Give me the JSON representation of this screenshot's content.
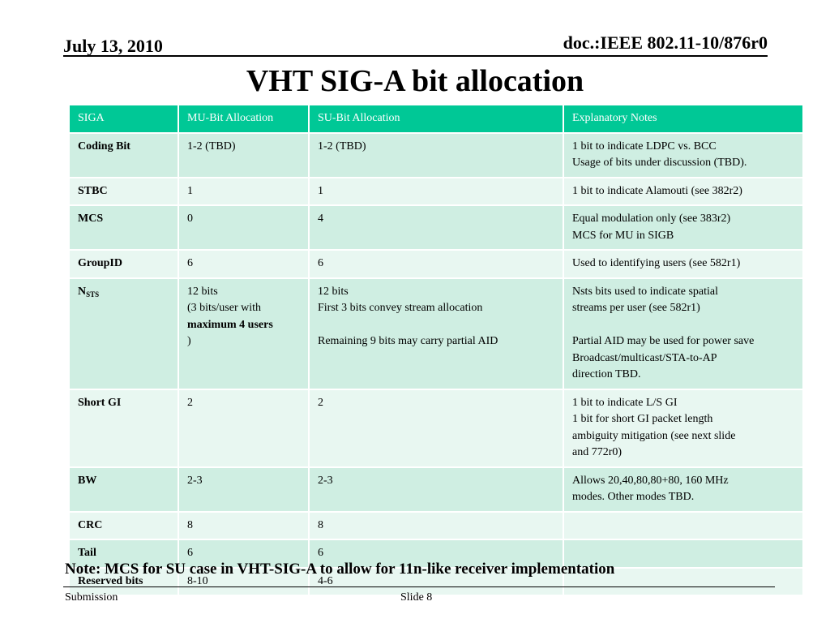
{
  "header": {
    "date": "July 13, 2010",
    "doc_id": "doc.:IEEE 802.11-10/876r0"
  },
  "slide_title": "VHT SIG-A bit allocation",
  "table": {
    "columns": [
      "SIGA",
      "MU-Bit Allocation",
      "SU-Bit Allocation",
      "Explanatory Notes"
    ],
    "rows": [
      {
        "field": "Coding Bit",
        "mu": [
          "1-2 (TBD)"
        ],
        "su": [
          "1-2  (TBD)"
        ],
        "notes": [
          "1 bit to indicate LDPC vs. BCC",
          "Usage of bits under discussion (TBD)."
        ]
      },
      {
        "field": "STBC",
        "mu": [
          "1"
        ],
        "su": [
          "1"
        ],
        "notes": [
          "1 bit to indicate Alamouti (see 382r2)"
        ]
      },
      {
        "field": "MCS",
        "mu": [
          "0"
        ],
        "su": [
          "4"
        ],
        "notes": [
          " Equal modulation only (see 383r2)",
          "MCS for MU in SIGB"
        ]
      },
      {
        "field": "GroupID",
        "mu": [
          "6"
        ],
        "su": [
          "6"
        ],
        "notes": [
          "Used to identifying users (see 582r1)"
        ]
      },
      {
        "field": "N",
        "field_sub": "STS",
        "mu": [
          "12 bits",
          "(3 bits/user with"
        ],
        "mu_bold_line": "maximum 4 users",
        "mu_bold_suffix": ")",
        "su": [
          "12 bits",
          "First 3 bits convey stream allocation",
          "",
          "Remaining 9 bits may carry partial AID"
        ],
        "notes": [
          "Nsts bits used to indicate spatial",
          "streams per user (see 582r1)",
          "",
          "Partial AID may be used for power save",
          "Broadcast/multicast/STA-to-AP",
          "direction TBD."
        ]
      },
      {
        "field": "Short GI",
        "mu": [
          "2"
        ],
        "su": [
          "2"
        ],
        "notes": [
          "1 bit to indicate L/S GI",
          "1 bit for short GI packet length",
          "ambiguity mitigation (see next slide",
          "and 772r0)"
        ]
      },
      {
        "field": "BW",
        "mu": [
          "2-3"
        ],
        "su": [
          "2-3"
        ],
        "notes": [
          "Allows 20,40,80,80+80, 160 MHz",
          "modes. Other modes TBD."
        ]
      },
      {
        "field": "CRC",
        "mu": [
          "8"
        ],
        "su": [
          "8"
        ],
        "notes": []
      },
      {
        "field": "Tail",
        "mu": [
          "6"
        ],
        "su": [
          "6"
        ],
        "notes": []
      },
      {
        "field": "Reserved bits",
        "mu": [
          "8-10"
        ],
        "su": [
          "4-6"
        ],
        "notes": []
      }
    ]
  },
  "note": "Note: MCS for SU case in VHT-SIG-A to allow for 11n-like receiver implementation",
  "footer": {
    "left": "Submission",
    "center": "Slide 8"
  },
  "colors": {
    "header_fill": "#00c896",
    "row_fill_dark": "#cfeee2",
    "row_fill_light": "#e8f7f1"
  }
}
